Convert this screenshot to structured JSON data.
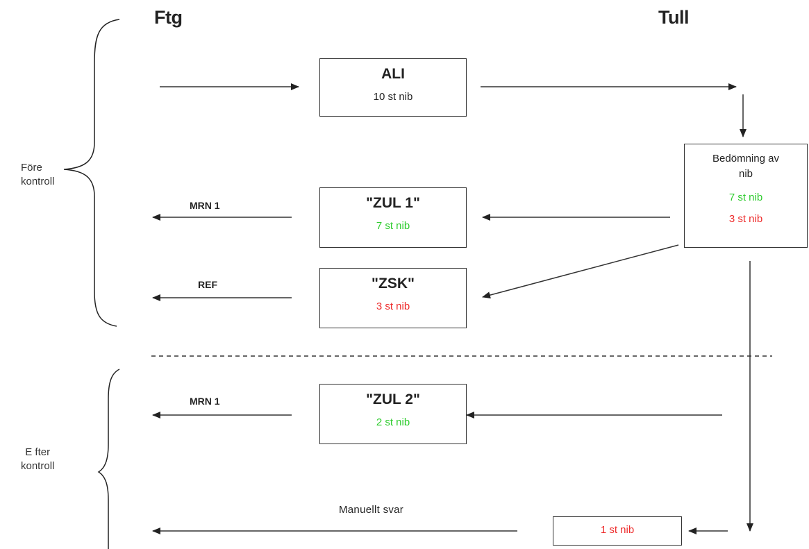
{
  "columns": {
    "left": "Ftg",
    "right": "Tull"
  },
  "sections": {
    "before": {
      "line1": "Före",
      "line2": "kontroll"
    },
    "after": {
      "line1": "E fter",
      "line2": "kontroll"
    }
  },
  "boxes": {
    "ali": {
      "title": "ALI",
      "sub": "10 st nib"
    },
    "zul1": {
      "title": "\"ZUL 1\"",
      "sub": "7 st nib"
    },
    "zsk": {
      "title": "\"ZSK\"",
      "sub": "3 st nib"
    },
    "zul2": {
      "title": "\"ZUL 2\"",
      "sub": "2 st nib"
    },
    "assessment": {
      "line1": "Bedömning av",
      "line2": "nib",
      "green": "7 st nib",
      "red": "3 st nib"
    },
    "manual": {
      "sub": "1 st nib"
    }
  },
  "labels": {
    "mrn1_top": "MRN 1",
    "ref": "REF",
    "mrn1_bottom": "MRN 1",
    "manual_reply": "Manuellt svar"
  },
  "colors": {
    "green": "#2ecc2e",
    "red": "#ee2b2b",
    "line": "#333333"
  }
}
